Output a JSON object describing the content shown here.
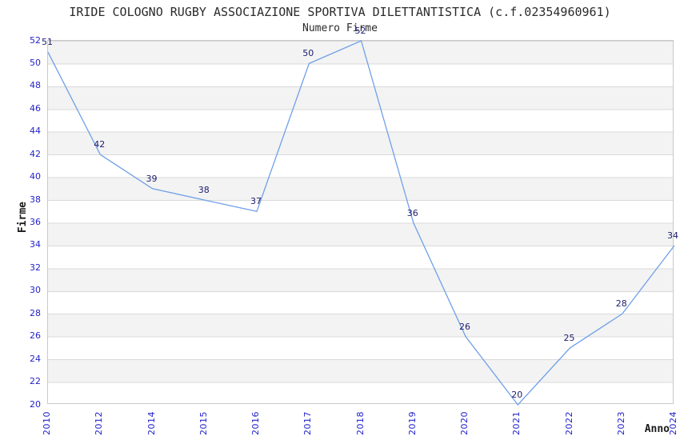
{
  "chart_data": {
    "type": "line",
    "title": "IRIDE COLOGNO RUGBY ASSOCIAZIONE SPORTIVA DILETTANTISTICA (c.f.02354960961)",
    "subtitle": "Numero Firme",
    "xlabel": "Anno",
    "ylabel": "Firme",
    "categories": [
      "2010",
      "2012",
      "2014",
      "2015",
      "2016",
      "2017",
      "2018",
      "2019",
      "2020",
      "2021",
      "2022",
      "2023",
      "2024"
    ],
    "values": [
      51,
      42,
      39,
      38,
      37,
      50,
      52,
      36,
      26,
      20,
      25,
      28,
      34
    ],
    "ylim": [
      20,
      52
    ],
    "ytick_step": 2,
    "grid": "horizontal-alternating-bands",
    "legend": "none",
    "colors": {
      "line": "#6fa0e8",
      "tick_labels": "#2323cc",
      "value_labels": "#1c1c6e",
      "band_gray": "#f3f3f3",
      "plot_border": "#c9c9c9",
      "title_text": "#2b2b2b"
    }
  }
}
